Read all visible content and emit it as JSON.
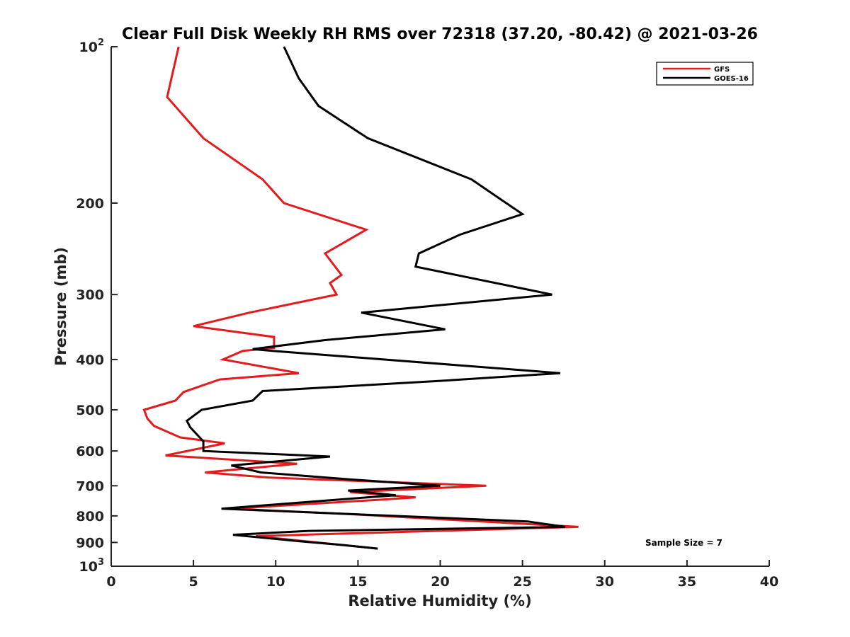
{
  "chart_data": {
    "type": "line",
    "title": "Clear Full Disk Weekly RH RMS over 72318 (37.20, -80.42) @ 2021-03-26",
    "xlabel": "Relative Humidity (%)",
    "ylabel": "Pressure (mb)",
    "xlim": [
      0,
      40
    ],
    "ylim": [
      1000,
      100
    ],
    "y_scale": "log",
    "y_reversed": true,
    "grid": false,
    "legend_position": "top-right",
    "annotation": "Sample Size = 7",
    "x_ticks": [
      {
        "value": 0,
        "label": "0"
      },
      {
        "value": 5,
        "label": "5"
      },
      {
        "value": 10,
        "label": "10"
      },
      {
        "value": 15,
        "label": "15"
      },
      {
        "value": 20,
        "label": "20"
      },
      {
        "value": 25,
        "label": "25"
      },
      {
        "value": 30,
        "label": "30"
      },
      {
        "value": 35,
        "label": "35"
      },
      {
        "value": 40,
        "label": "40"
      }
    ],
    "y_ticks": [
      {
        "value": 100,
        "label": "10",
        "exp": "2"
      },
      {
        "value": 200,
        "label": "200"
      },
      {
        "value": 300,
        "label": "300"
      },
      {
        "value": 400,
        "label": "400"
      },
      {
        "value": 500,
        "label": "500"
      },
      {
        "value": 600,
        "label": "600"
      },
      {
        "value": 700,
        "label": "700"
      },
      {
        "value": 800,
        "label": "800"
      },
      {
        "value": 900,
        "label": "900"
      },
      {
        "value": 1000,
        "label": "10",
        "exp": "3"
      }
    ],
    "series": [
      {
        "name": "GFS",
        "color": "#e41a1c",
        "points": [
          [
            4.1,
            100
          ],
          [
            3.4,
            125
          ],
          [
            5.6,
            150
          ],
          [
            9.2,
            180
          ],
          [
            10.5,
            200
          ],
          [
            15.5,
            225
          ],
          [
            13.0,
            250
          ],
          [
            14.0,
            275
          ],
          [
            13.3,
            285
          ],
          [
            13.7,
            300
          ],
          [
            8.4,
            325
          ],
          [
            5.0,
            345
          ],
          [
            9.9,
            362
          ],
          [
            9.9,
            380
          ],
          [
            8.0,
            385
          ],
          [
            6.8,
            400
          ],
          [
            11.4,
            425
          ],
          [
            6.6,
            437
          ],
          [
            4.4,
            462
          ],
          [
            3.9,
            480
          ],
          [
            2.0,
            500
          ],
          [
            2.2,
            520
          ],
          [
            2.6,
            537
          ],
          [
            4.2,
            565
          ],
          [
            6.9,
            580
          ],
          [
            3.3,
            612
          ],
          [
            11.3,
            635
          ],
          [
            5.7,
            660
          ],
          [
            9.6,
            675
          ],
          [
            22.8,
            700
          ],
          [
            14.5,
            720
          ],
          [
            18.5,
            737
          ],
          [
            16.2,
            745
          ],
          [
            7.3,
            775
          ],
          [
            14.9,
            795
          ],
          [
            28.4,
            840
          ],
          [
            8.8,
            875
          ],
          [
            12.5,
            900
          ],
          [
            16.2,
            925
          ]
        ]
      },
      {
        "name": "GOES-16",
        "color": "#000000",
        "points": [
          [
            10.5,
            100
          ],
          [
            11.4,
            115
          ],
          [
            12.6,
            130
          ],
          [
            15.6,
            150
          ],
          [
            21.9,
            180
          ],
          [
            23.5,
            195
          ],
          [
            25.0,
            210
          ],
          [
            21.2,
            230
          ],
          [
            18.7,
            250
          ],
          [
            18.5,
            265
          ],
          [
            26.8,
            300
          ],
          [
            15.2,
            325
          ],
          [
            20.3,
            350
          ],
          [
            13.0,
            367
          ],
          [
            8.6,
            382
          ],
          [
            9.8,
            385
          ],
          [
            27.3,
            425
          ],
          [
            19.9,
            440
          ],
          [
            9.2,
            460
          ],
          [
            8.6,
            480
          ],
          [
            5.5,
            500
          ],
          [
            4.6,
            525
          ],
          [
            4.8,
            540
          ],
          [
            5.6,
            575
          ],
          [
            5.6,
            600
          ],
          [
            13.3,
            615
          ],
          [
            7.3,
            640
          ],
          [
            9.1,
            660
          ],
          [
            14.4,
            680
          ],
          [
            20.0,
            700
          ],
          [
            14.4,
            715
          ],
          [
            17.3,
            730
          ],
          [
            13.6,
            745
          ],
          [
            6.7,
            775
          ],
          [
            25.3,
            820
          ],
          [
            27.6,
            840
          ],
          [
            12.0,
            855
          ],
          [
            7.4,
            870
          ],
          [
            11.4,
            895
          ],
          [
            14.0,
            910
          ],
          [
            16.2,
            925
          ]
        ]
      }
    ]
  }
}
